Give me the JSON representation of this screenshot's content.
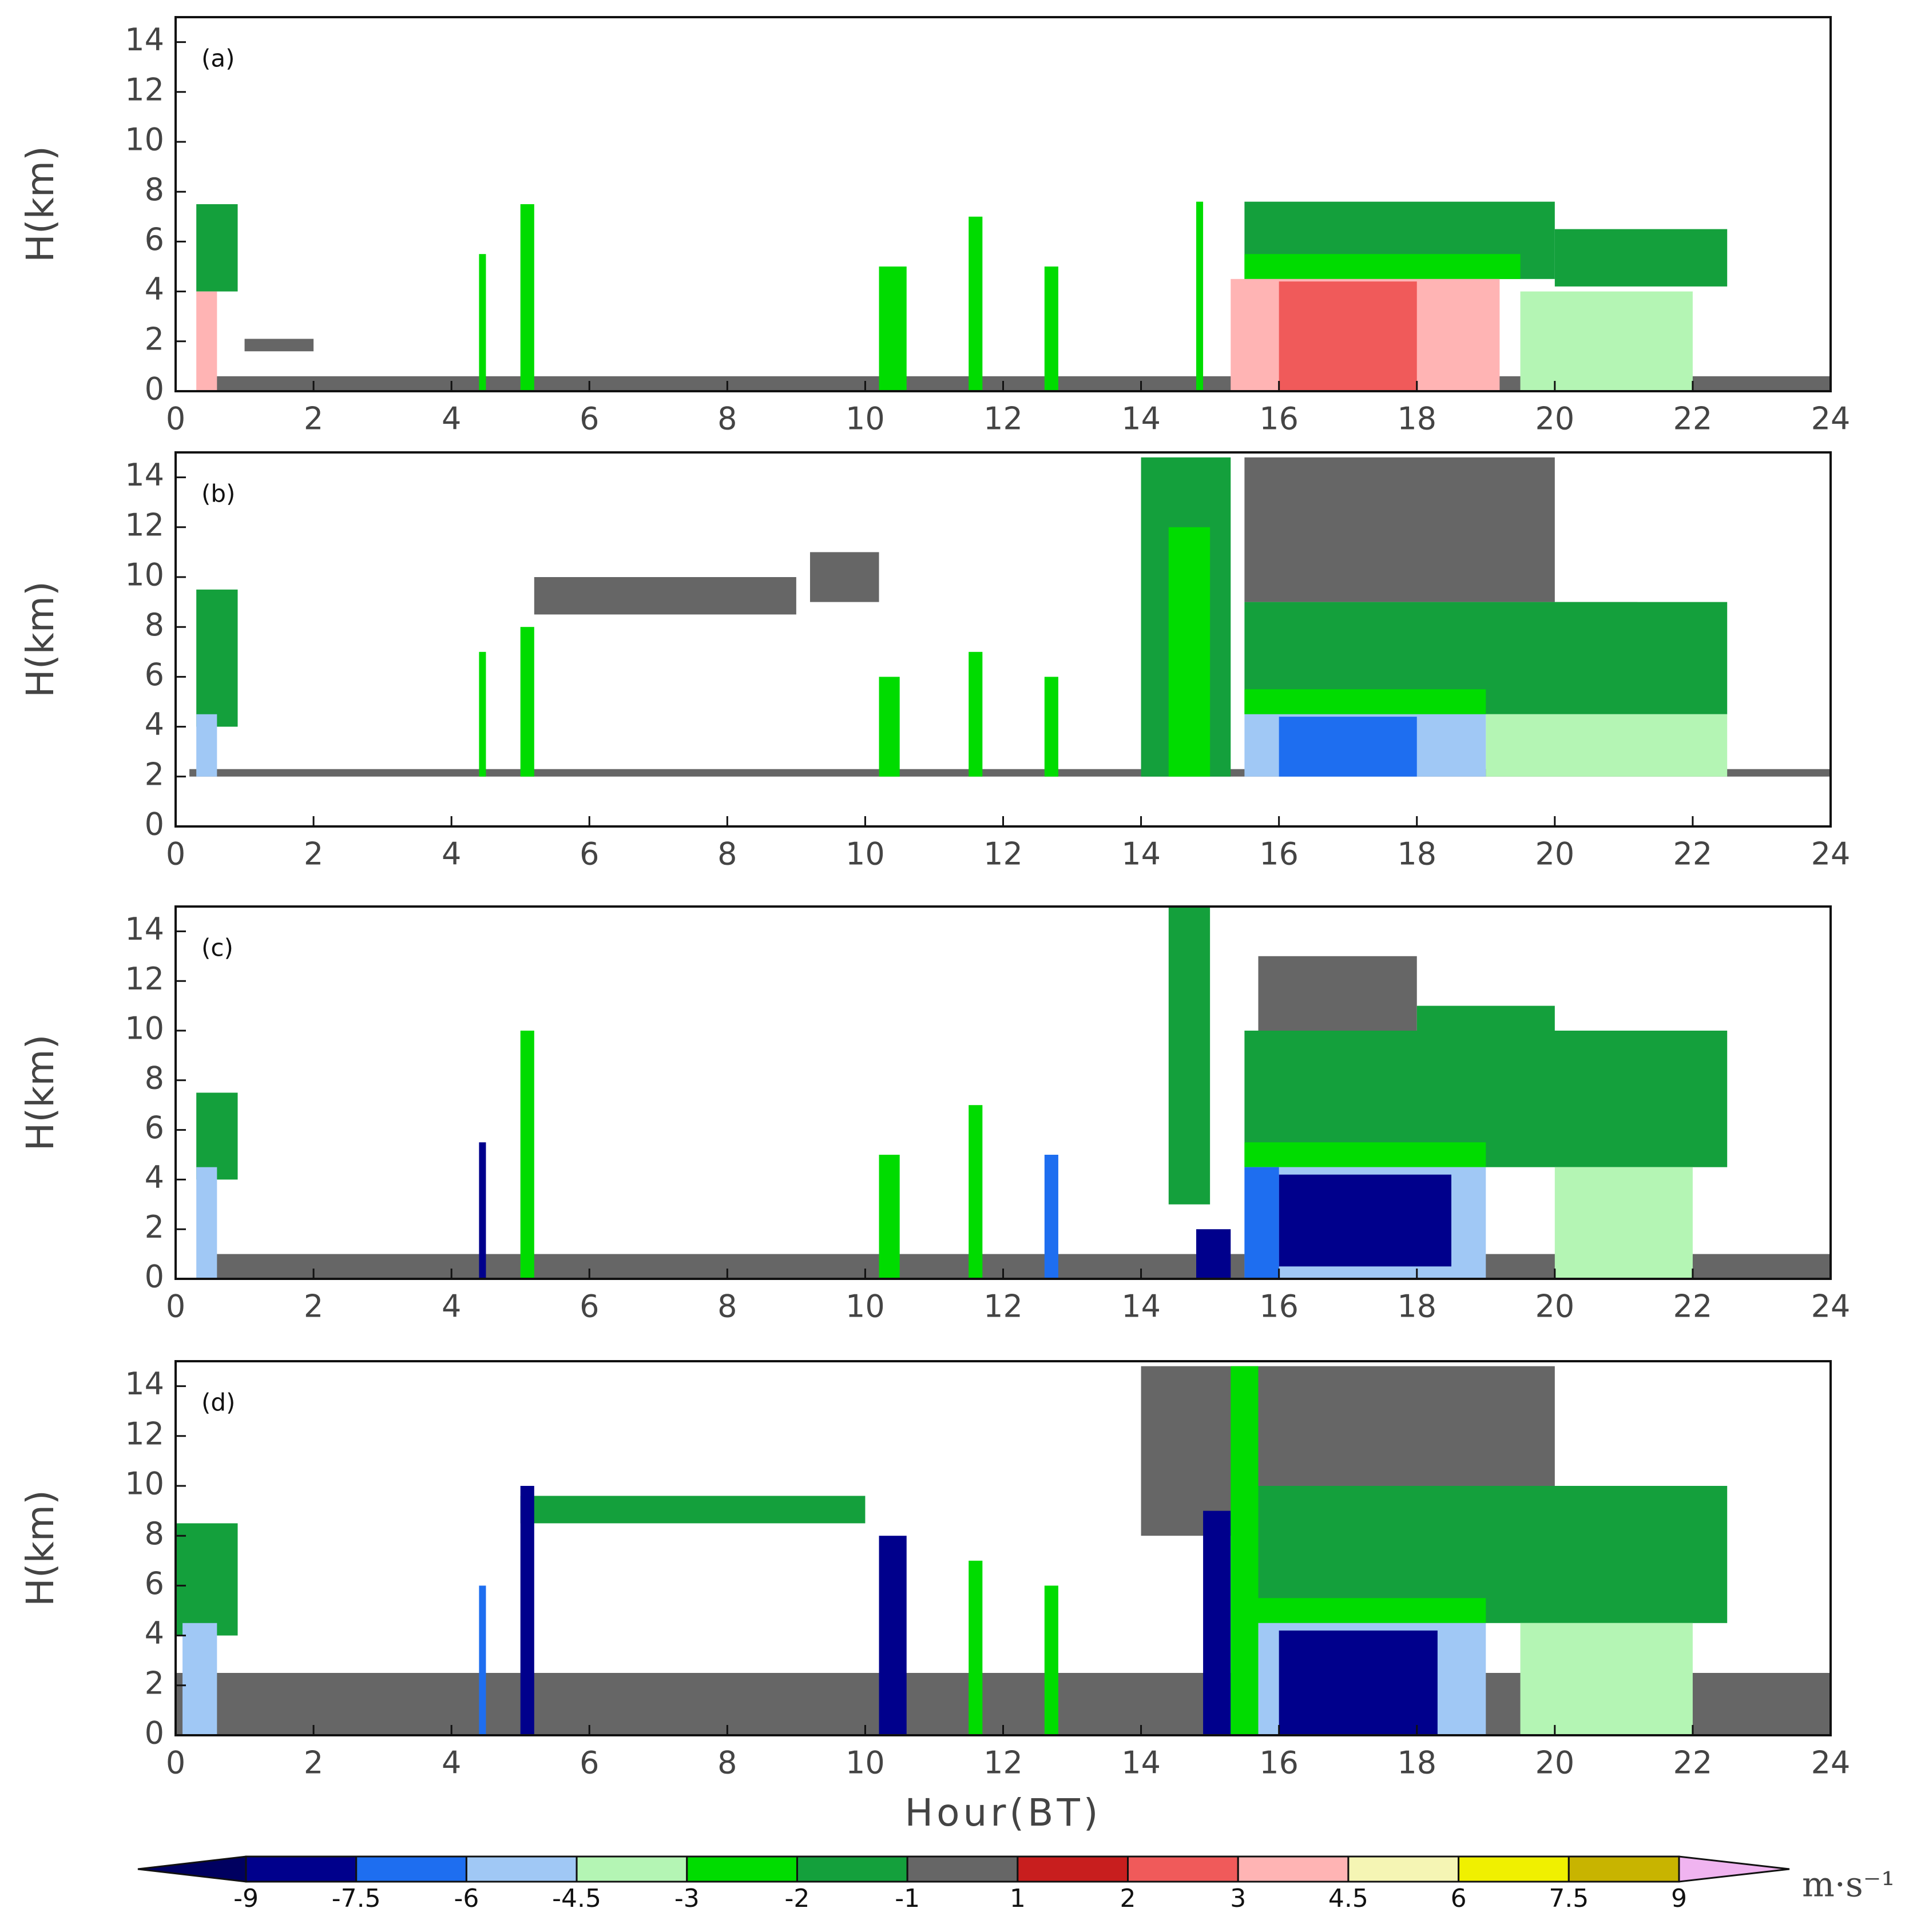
{
  "chart_data": [
    {
      "type": "heatmap",
      "label": "(a)",
      "ylabel": "H(km)",
      "xlim": [
        0,
        24
      ],
      "xticks": [
        0,
        2,
        4,
        6,
        8,
        10,
        12,
        14,
        16,
        18,
        20,
        22,
        24
      ],
      "ylim": [
        0,
        15
      ],
      "yticks": [
        0,
        2,
        4,
        6,
        8,
        10,
        12,
        14
      ]
    },
    {
      "type": "heatmap",
      "label": "(b)",
      "ylabel": "H(km)",
      "xlim": [
        0,
        24
      ],
      "xticks": [
        0,
        2,
        4,
        6,
        8,
        10,
        12,
        14,
        16,
        18,
        20,
        22,
        24
      ],
      "ylim": [
        0,
        15
      ],
      "yticks": [
        0,
        2,
        4,
        6,
        8,
        10,
        12,
        14
      ]
    },
    {
      "type": "heatmap",
      "label": "(c)",
      "ylabel": "H(km)",
      "xlim": [
        0,
        24
      ],
      "xticks": [
        0,
        2,
        4,
        6,
        8,
        10,
        12,
        14,
        16,
        18,
        20,
        22,
        24
      ],
      "ylim": [
        0,
        15
      ],
      "yticks": [
        0,
        2,
        4,
        6,
        8,
        10,
        12,
        14
      ]
    },
    {
      "type": "heatmap",
      "label": "(d)",
      "ylabel": "H(km)",
      "xlabel": "Hour(BT)",
      "xlim": [
        0,
        24
      ],
      "xticks": [
        0,
        2,
        4,
        6,
        8,
        10,
        12,
        14,
        16,
        18,
        20,
        22,
        24
      ],
      "ylim": [
        0,
        15
      ],
      "yticks": [
        0,
        2,
        4,
        6,
        8,
        10,
        12,
        14
      ]
    }
  ],
  "colorbar": {
    "ticks": [
      -9,
      -7.5,
      -6,
      -4.5,
      -3,
      -2,
      -1,
      1,
      2,
      3,
      4.5,
      6,
      7.5,
      9
    ],
    "colors": [
      "#000060",
      "#00008c",
      "#1e6ef0",
      "#a0c8f5",
      "#b4f5b4",
      "#00dc00",
      "#14a03c",
      "#666666",
      "#c81e1e",
      "#f05a5a",
      "#ffb4b4",
      "#f5f5b4",
      "#f0f000",
      "#c8b400",
      "#f0b4f0"
    ],
    "unit": "m·s⁻¹"
  }
}
